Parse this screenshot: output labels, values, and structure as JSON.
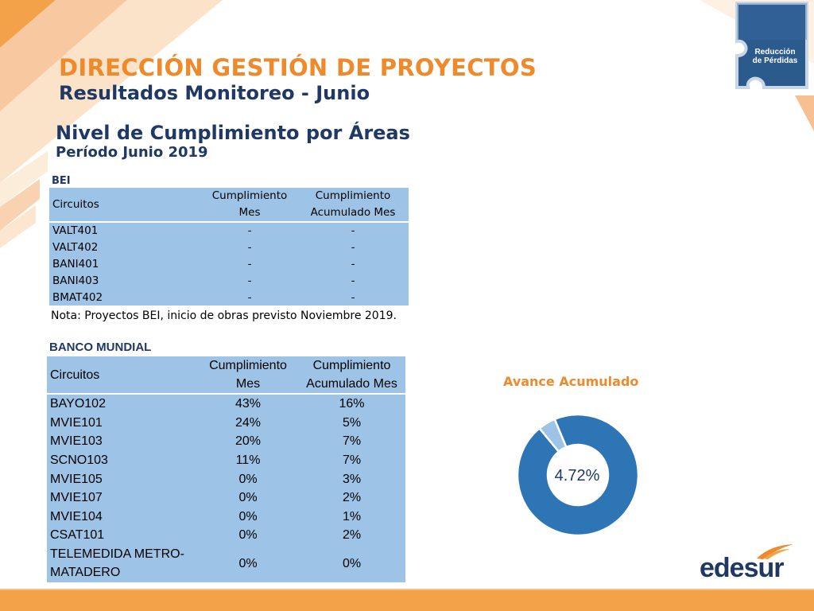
{
  "header": {
    "title": "DIRECCIÓN GESTIÓN DE PROYECTOS",
    "subtitle": "Resultados Monitoreo - Junio",
    "section_title": "Nivel de Cumplimiento por Áreas",
    "period": "Período Junio 2019"
  },
  "badge": {
    "line1": "Reducción",
    "line2": "de Pérdidas"
  },
  "bei": {
    "label": "BEI",
    "headers": {
      "circuits": "Circuitos",
      "mes_1": "Cumplimiento",
      "mes_2": "Mes",
      "acum_1": "Cumplimiento",
      "acum_2": "Acumulado Mes"
    },
    "rows": [
      {
        "circuit": "VALT401",
        "mes": "-",
        "acum": "-"
      },
      {
        "circuit": "VALT402",
        "mes": "-",
        "acum": "-"
      },
      {
        "circuit": "BANI401",
        "mes": "-",
        "acum": "-"
      },
      {
        "circuit": "BANI403",
        "mes": "-",
        "acum": "-"
      },
      {
        "circuit": "BMAT402",
        "mes": "-",
        "acum": "-"
      }
    ],
    "note": "Nota: Proyectos BEI, inicio de obras previsto Noviembre 2019."
  },
  "banco_mundial": {
    "label": "BANCO MUNDIAL",
    "headers": {
      "circuits": "Circuitos",
      "mes_1": "Cumplimiento",
      "mes_2": "Mes",
      "acum_1": "Cumplimiento",
      "acum_2": "Acumulado Mes"
    },
    "rows": [
      {
        "circuit": "BAYO102",
        "mes": "43%",
        "acum": "16%"
      },
      {
        "circuit": "MVIE101",
        "mes": "24%",
        "acum": "5%"
      },
      {
        "circuit": "MVIE103",
        "mes": "20%",
        "acum": "7%"
      },
      {
        "circuit": "SCNO103",
        "mes": "11%",
        "acum": "7%"
      },
      {
        "circuit": "MVIE105",
        "mes": "0%",
        "acum": "3%"
      },
      {
        "circuit": "MVIE107",
        "mes": "0%",
        "acum": "2%"
      },
      {
        "circuit": "MVIE104",
        "mes": "0%",
        "acum": "1%"
      },
      {
        "circuit": "CSAT101",
        "mes": "0%",
        "acum": "2%"
      },
      {
        "circuit_1": "TELEMEDIDA METRO-",
        "circuit_2": "MATADERO",
        "mes": "0%",
        "acum": "0%"
      }
    ]
  },
  "chart_data": {
    "type": "pie",
    "title": "Avance Acumulado",
    "center_label": "4.72%",
    "slices": [
      {
        "value": 4.72,
        "color": "#9dc3e6"
      },
      {
        "value": 95.28,
        "color": "#2e75b6"
      }
    ]
  },
  "brand": {
    "name": "edesur"
  }
}
